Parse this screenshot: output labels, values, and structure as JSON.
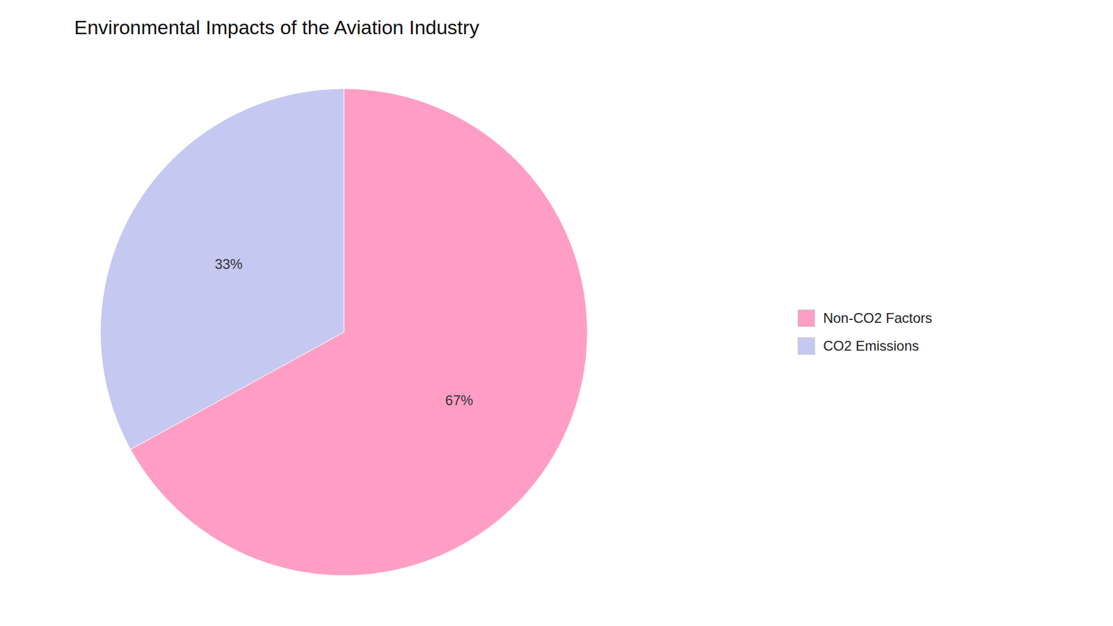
{
  "chart_data": {
    "type": "pie",
    "title": "Environmental Impacts of the Aviation Industry",
    "categories": [
      "Non-CO2 Factors",
      "CO2 Emissions"
    ],
    "values": [
      67,
      33
    ],
    "value_labels": [
      "67%",
      "33%"
    ],
    "colors": [
      "#FF9EC4",
      "#C5C8F0"
    ],
    "data_labels": true,
    "legend": "right"
  }
}
